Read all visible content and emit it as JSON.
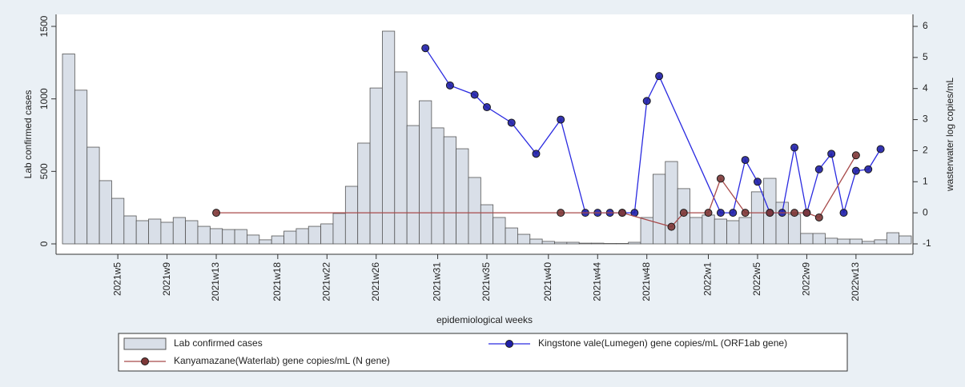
{
  "chart_data": {
    "type": "bar",
    "x_label": "epidemiological weeks",
    "y_label": "Lab confirmed cases",
    "y2_label": "wasterwater log copies/mL",
    "categories": [
      null,
      null,
      null,
      null,
      "2021w5",
      null,
      null,
      null,
      "2021w9",
      null,
      null,
      null,
      "2021w13",
      null,
      null,
      null,
      null,
      "2021w18",
      null,
      null,
      null,
      "2021w22",
      null,
      null,
      null,
      "2021w26",
      null,
      null,
      null,
      null,
      "2021w31",
      null,
      null,
      null,
      "2021w35",
      null,
      null,
      null,
      null,
      "2021w40",
      null,
      null,
      null,
      "2021w44",
      null,
      null,
      null,
      "2021w48",
      null,
      null,
      null,
      null,
      "2022w1",
      null,
      null,
      null,
      "2022w5",
      null,
      null,
      null,
      "2022w9",
      null,
      null,
      null,
      "2022w13",
      null,
      null,
      null,
      null
    ],
    "ylim": [
      0,
      1500
    ],
    "yticks": [
      0,
      500,
      1000,
      1500
    ],
    "y2lim": [
      -1,
      6
    ],
    "y2ticks": [
      -1,
      0,
      1,
      2,
      3,
      4,
      5,
      6
    ],
    "connect_gaps": true,
    "series": [
      {
        "name": "Lab confirmed cases",
        "type": "bar",
        "color": "#d9dfe8",
        "values": [
          1310,
          1060,
          667,
          436,
          314,
          193,
          160,
          171,
          149,
          182,
          160,
          121,
          105,
          99,
          99,
          61,
          28,
          55,
          88,
          105,
          121,
          138,
          210,
          397,
          695,
          1075,
          1467,
          1186,
          816,
          987,
          800,
          739,
          656,
          458,
          270,
          182,
          110,
          66,
          33,
          17,
          11,
          11,
          5,
          5,
          3,
          3,
          11,
          182,
          480,
          568,
          381,
          182,
          199,
          171,
          160,
          182,
          359,
          452,
          287,
          204,
          72,
          72,
          39,
          33,
          33,
          17,
          28,
          77,
          55
        ]
      },
      {
        "name": "Kingstone vale(Lumegen) gene copies/mL (ORF1ab gene)",
        "type": "line",
        "axis": "y2",
        "color": "#2a2ae0",
        "values": [
          null,
          null,
          null,
          null,
          null,
          null,
          null,
          null,
          null,
          null,
          null,
          null,
          null,
          null,
          null,
          null,
          null,
          null,
          null,
          null,
          null,
          null,
          null,
          null,
          null,
          null,
          null,
          null,
          null,
          5.3,
          null,
          4.1,
          null,
          3.8,
          3.4,
          null,
          2.9,
          null,
          1.9,
          null,
          3.0,
          null,
          0,
          0,
          0,
          0,
          0,
          3.6,
          4.4,
          null,
          null,
          null,
          null,
          0,
          0,
          1.7,
          1.0,
          0,
          0,
          2.1,
          0,
          1.4,
          1.9,
          0,
          1.35,
          1.4,
          2.05,
          null,
          null
        ]
      },
      {
        "name": "Kanyamazane(Waterlab) gene copies/mL (N gene)",
        "type": "line",
        "axis": "y2",
        "color": "#a84a4a",
        "values": [
          null,
          null,
          null,
          null,
          null,
          null,
          null,
          null,
          null,
          null,
          null,
          null,
          0,
          null,
          null,
          null,
          null,
          null,
          null,
          null,
          null,
          null,
          null,
          null,
          null,
          null,
          null,
          null,
          null,
          null,
          null,
          null,
          null,
          null,
          null,
          null,
          null,
          null,
          null,
          null,
          0,
          null,
          null,
          null,
          null,
          0,
          null,
          null,
          null,
          -0.45,
          0,
          null,
          0,
          1.1,
          null,
          0,
          null,
          0,
          null,
          0,
          0,
          -0.15,
          null,
          null,
          1.85,
          null,
          null,
          null,
          null
        ]
      }
    ]
  }
}
